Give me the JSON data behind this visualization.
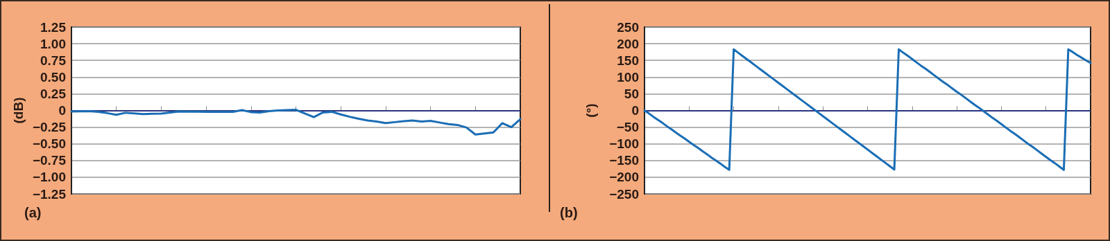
{
  "chart_data": [
    {
      "type": "line",
      "title": "(a)",
      "ylabel": "(dB)",
      "categories": [
        null,
        null,
        null,
        null,
        null,
        null,
        null,
        null,
        null,
        null,
        null,
        null,
        null,
        null,
        null,
        null,
        null,
        null,
        null,
        null,
        null,
        null,
        null,
        null,
        null,
        null,
        null,
        null,
        null,
        null,
        null,
        null,
        null,
        null,
        null,
        null,
        null,
        null,
        null,
        null,
        null,
        null,
        null,
        null,
        null,
        null,
        null,
        null,
        null,
        null,
        null
      ],
      "ylim": [
        -1.25,
        1.25
      ],
      "yticks": [
        1.25,
        {
          "value": 1,
          "label": "1.00"
        },
        0.75,
        {
          "value": 0.5,
          "label": "0.50"
        },
        0.25,
        0,
        {
          "value": -0.25,
          "label": "−0.25"
        },
        {
          "value": -0.5,
          "label": "−0.50"
        },
        {
          "value": -0.75,
          "label": "−0.75"
        },
        {
          "value": -1,
          "label": "−1.00"
        },
        {
          "value": -1.25,
          "label": "−1.25"
        }
      ],
      "tick_labels": "y",
      "grid": "y",
      "marker": "none",
      "line_style": "solid",
      "ref_lines": [
        {
          "axis": "y",
          "value": 0,
          "label": null,
          "color": "#2a3a9c"
        }
      ],
      "series": [
        {
          "color": "#1a6db5",
          "values": [
            -0.015,
            -0.013,
            -0.011,
            -0.02,
            -0.04,
            -0.065,
            -0.035,
            -0.045,
            -0.055,
            -0.05,
            -0.047,
            -0.03,
            -0.016,
            -0.019,
            -0.018,
            -0.022,
            -0.02,
            -0.02,
            -0.02,
            0.005,
            -0.025,
            -0.03,
            -0.01,
            0,
            0.005,
            0.01,
            -0.045,
            -0.1,
            -0.03,
            -0.02,
            -0.06,
            -0.095,
            -0.125,
            -0.15,
            -0.165,
            -0.19,
            -0.175,
            -0.16,
            -0.15,
            -0.165,
            -0.155,
            -0.18,
            -0.205,
            -0.217,
            -0.255,
            -0.36,
            -0.345,
            -0.33,
            -0.19,
            -0.25,
            -0.13
          ]
        }
      ]
    },
    {
      "type": "line",
      "title": "(b)",
      "ylabel": "(°)",
      "categories": [
        null,
        null,
        null,
        null,
        null,
        null,
        null,
        null,
        null,
        null,
        null,
        null,
        null,
        null,
        null,
        null,
        null,
        null,
        null,
        null,
        null,
        null,
        null,
        null,
        null,
        null,
        null,
        null,
        null,
        null,
        null,
        null,
        null,
        null,
        null,
        null,
        null,
        null,
        null,
        null,
        null,
        null,
        null,
        null,
        null,
        null,
        null,
        null,
        null,
        null,
        null,
        null,
        null,
        null,
        null,
        null,
        null,
        null,
        null,
        null,
        null,
        null,
        null,
        null,
        null,
        null,
        null,
        null,
        null,
        null,
        null,
        null,
        null,
        null,
        null,
        null,
        null,
        null,
        null,
        null,
        null,
        null,
        null,
        null,
        null,
        null,
        null,
        null,
        null,
        null,
        null,
        null,
        null,
        null,
        null,
        null,
        null,
        null,
        null,
        null,
        null
      ],
      "ylim": [
        -250,
        250
      ],
      "yticks": [
        250,
        200,
        150,
        100,
        50,
        0,
        {
          "value": -50,
          "label": "−50"
        },
        {
          "value": -100,
          "label": "−100"
        },
        {
          "value": -150,
          "label": "−150"
        },
        {
          "value": -200,
          "label": "−200"
        },
        {
          "value": -250,
          "label": "−250"
        }
      ],
      "tick_labels": "y",
      "grid": "y",
      "marker": "none",
      "line_style": "solid",
      "ref_lines": [
        {
          "axis": "y",
          "value": 0,
          "label": null,
          "color": "#2a3a9c"
        }
      ],
      "series": [
        {
          "color": "#1a6db5",
          "values": [
            0,
            -9,
            -19,
            -28,
            -37,
            -47,
            -56,
            -66,
            -75,
            -84,
            -94,
            -103,
            -112,
            -122,
            -131,
            -141,
            -150,
            -159,
            -169,
            -178,
            183,
            173,
            163,
            153,
            143,
            133,
            123,
            113,
            103,
            93,
            83,
            73,
            63,
            53,
            43,
            33,
            23,
            13,
            3,
            -7,
            -17,
            -27,
            -37,
            -47,
            -57,
            -67,
            -77,
            -87,
            -97,
            -107,
            -117,
            -127,
            -137,
            -147,
            -157,
            -167,
            -177,
            183,
            173,
            164,
            154,
            144,
            134,
            125,
            115,
            105,
            95,
            85,
            76,
            66,
            56,
            47,
            37,
            27,
            17,
            8,
            -2,
            -12,
            -22,
            -31,
            -41,
            -51,
            -61,
            -70,
            -80,
            -90,
            -100,
            -109,
            -119,
            -129,
            -139,
            -149,
            -158,
            -168,
            -178,
            183,
            175,
            166,
            158,
            150,
            142
          ]
        }
      ]
    }
  ]
}
